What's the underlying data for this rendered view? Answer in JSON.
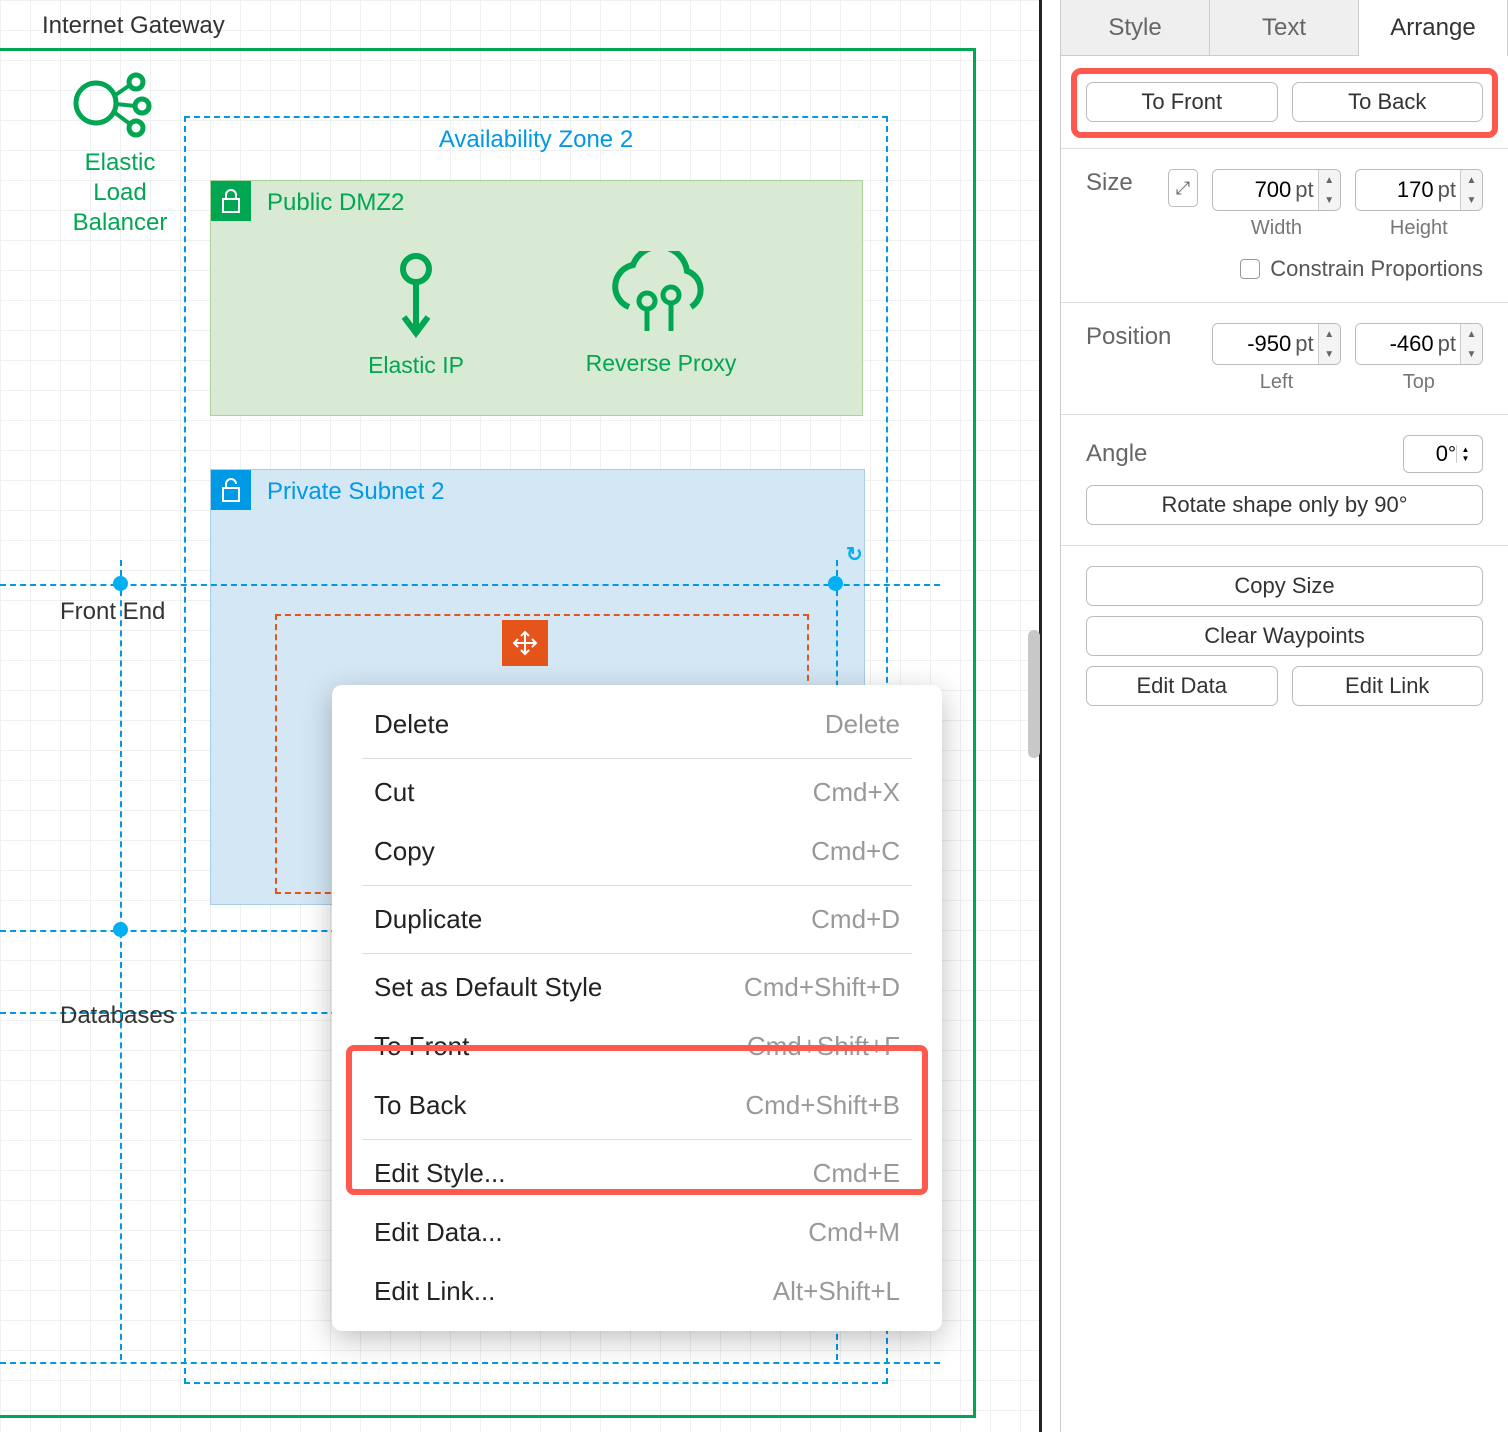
{
  "canvas": {
    "internet_gateway_label": "Internet Gateway",
    "availability_zone_title": "Availability Zone 2",
    "elb_label": "Elastic Load Balancer",
    "public_dmz_title": "Public DMZ2",
    "elastic_ip_label": "Elastic IP",
    "reverse_proxy_label": "Reverse Proxy",
    "private_subnet_title": "Private Subnet 2",
    "front_end_label": "Front End",
    "databases_label": "Databases",
    "colors": {
      "green": "#00a651",
      "blue": "#0099e5",
      "orange": "#e5551b",
      "highlight": "#ff584d",
      "public_fill": "#d8ead3",
      "private_fill": "#d4e7f5"
    }
  },
  "context_menu": {
    "items": [
      {
        "label": "Delete",
        "shortcut": "Delete"
      },
      {
        "separator": true
      },
      {
        "label": "Cut",
        "shortcut": "Cmd+X"
      },
      {
        "label": "Copy",
        "shortcut": "Cmd+C"
      },
      {
        "separator": true
      },
      {
        "label": "Duplicate",
        "shortcut": "Cmd+D"
      },
      {
        "separator": true
      },
      {
        "label": "Set as Default Style",
        "shortcut": "Cmd+Shift+D"
      },
      {
        "label": "To Front",
        "shortcut": "Cmd+Shift+F"
      },
      {
        "label": "To Back",
        "shortcut": "Cmd+Shift+B"
      },
      {
        "separator": true
      },
      {
        "label": "Edit Style...",
        "shortcut": "Cmd+E"
      },
      {
        "label": "Edit Data...",
        "shortcut": "Cmd+M"
      },
      {
        "label": "Edit Link...",
        "shortcut": "Alt+Shift+L"
      }
    ]
  },
  "panel": {
    "tabs": {
      "style": "Style",
      "text": "Text",
      "arrange": "Arrange",
      "active": "arrange"
    },
    "to_front": "To Front",
    "to_back": "To Back",
    "size_label": "Size",
    "width_value": "700",
    "width_unit": "pt",
    "width_label": "Width",
    "height_value": "170",
    "height_unit": "pt",
    "height_label": "Height",
    "constrain_label": "Constrain Proportions",
    "position_label": "Position",
    "left_value": "-950",
    "left_unit": "pt",
    "left_label": "Left",
    "top_value": "-460",
    "top_unit": "pt",
    "top_label": "Top",
    "angle_label": "Angle",
    "angle_value": "0",
    "angle_unit": "°",
    "rotate_label": "Rotate shape only by 90°",
    "copy_size": "Copy Size",
    "clear_waypoints": "Clear Waypoints",
    "edit_data": "Edit Data",
    "edit_link": "Edit Link"
  }
}
